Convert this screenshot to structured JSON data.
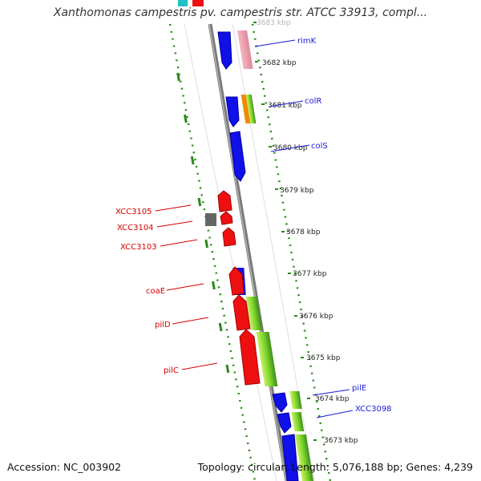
{
  "title": "Xanthomonas campestris pv. campestris str. ATCC 33913, compl...",
  "footer": {
    "accession": "Accession: NC_003902",
    "summary": "Topology: circular; Length: 5,076,188 bp; Genes: 4,239"
  },
  "ticks": [
    {
      "label": "3683 kbp",
      "faded": true
    },
    {
      "label": "3682 kbp"
    },
    {
      "label": "3681 kbp"
    },
    {
      "label": "3680 kbp"
    },
    {
      "label": "3679 kbp"
    },
    {
      "label": "3678 kbp"
    },
    {
      "label": "3677 kbp"
    },
    {
      "label": "3676 kbp"
    },
    {
      "label": "3675 kbp"
    },
    {
      "label": "3674 kbp"
    },
    {
      "label": "3673 kbp"
    }
  ],
  "gene_labels": [
    {
      "text": "rimK",
      "strand": "plus"
    },
    {
      "text": "colR",
      "strand": "plus"
    },
    {
      "text": "colS",
      "strand": "plus"
    },
    {
      "text": "pilE",
      "strand": "plus"
    },
    {
      "text": "XCC3098",
      "strand": "plus"
    },
    {
      "text": "XCC3105",
      "strand": "minus"
    },
    {
      "text": "XCC3104",
      "strand": "minus"
    },
    {
      "text": "XCC3103",
      "strand": "minus"
    },
    {
      "text": "coaE",
      "strand": "minus"
    },
    {
      "text": "pilD",
      "strand": "minus"
    },
    {
      "text": "pilC",
      "strand": "minus"
    }
  ],
  "colors": {
    "plus_strand_label": "#1a1ad6",
    "minus_strand_label": "#d60000",
    "plus_strand_gene": "#1010e8",
    "minus_strand_gene": "#ee1010",
    "backbone": "#8c8c8c",
    "dotted_track": "#2a8a1a"
  }
}
